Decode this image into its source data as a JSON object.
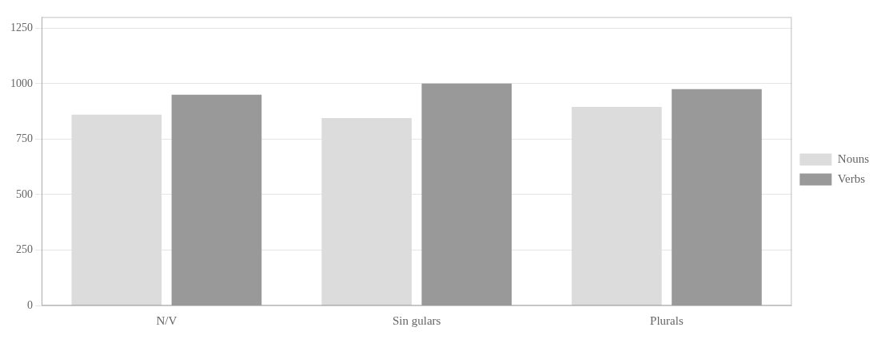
{
  "chart_data": {
    "type": "bar",
    "categories": [
      "N/V",
      "Sin gulars",
      "Plurals"
    ],
    "series": [
      {
        "name": "Nouns",
        "color": "#dcdcdc",
        "values": [
          860,
          845,
          895
        ]
      },
      {
        "name": "Verbs",
        "color": "#999999",
        "values": [
          950,
          1000,
          975
        ]
      }
    ],
    "ylim": [
      0,
      1300
    ],
    "yticks": [
      0,
      250,
      500,
      750,
      1000,
      1250
    ],
    "grid": true,
    "legend": "right"
  }
}
